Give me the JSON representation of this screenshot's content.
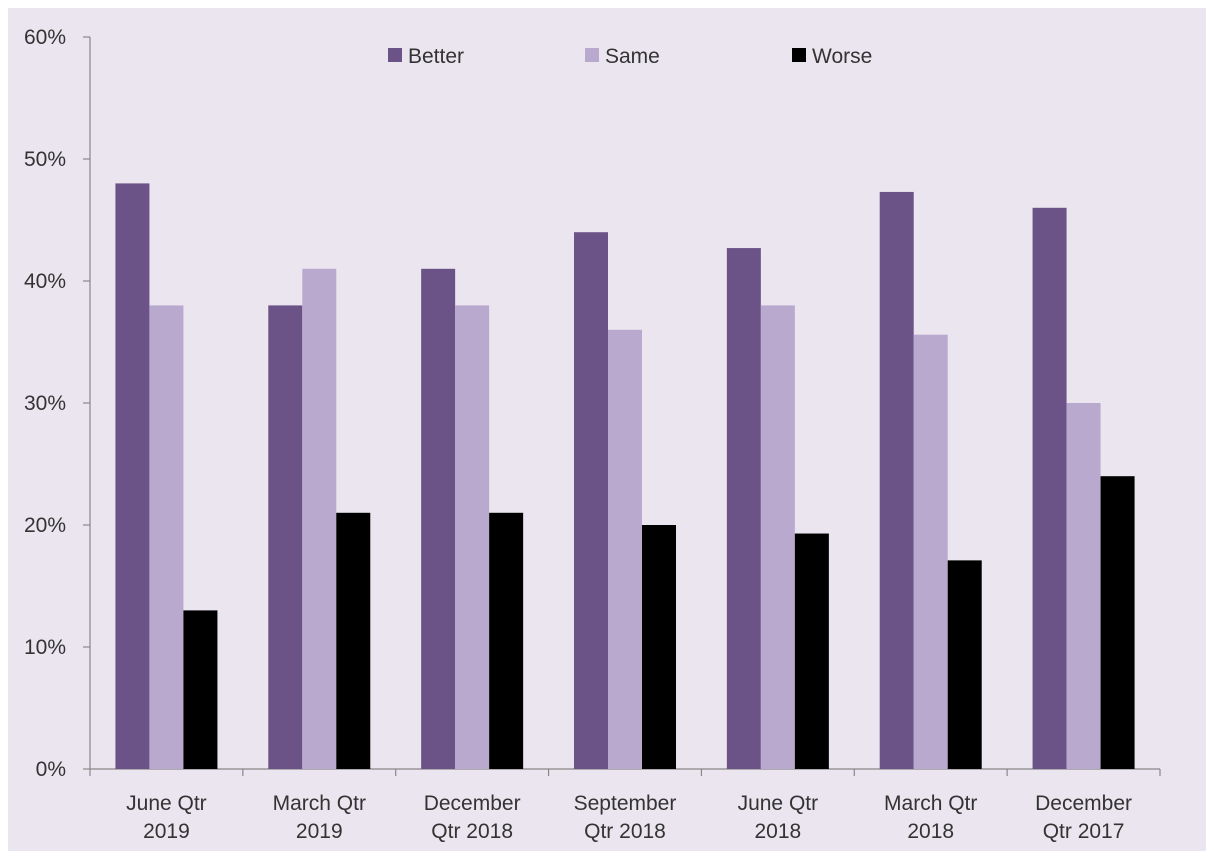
{
  "chart_data": {
    "type": "bar",
    "categories": [
      [
        "June Qtr",
        "2019"
      ],
      [
        "March Qtr",
        "2019"
      ],
      [
        "December",
        "Qtr 2018"
      ],
      [
        "September",
        "Qtr 2018"
      ],
      [
        "June Qtr",
        "2018"
      ],
      [
        "March Qtr",
        "2018"
      ],
      [
        "December",
        "Qtr 2017"
      ]
    ],
    "series": [
      {
        "name": "Better",
        "color": "#6b5388",
        "values": [
          48,
          38,
          41,
          44,
          42.7,
          47.3,
          46
        ]
      },
      {
        "name": "Same",
        "color": "#b9a9cf",
        "values": [
          38,
          41,
          38,
          36,
          38,
          35.6,
          30
        ]
      },
      {
        "name": "Worse",
        "color": "#000000",
        "values": [
          13,
          21,
          21,
          20,
          19.3,
          17.1,
          24
        ]
      }
    ],
    "y_ticks": [
      "0%",
      "10%",
      "20%",
      "30%",
      "40%",
      "50%",
      "60%"
    ],
    "ylim": [
      0,
      60
    ],
    "grid": false,
    "legend_position": "top",
    "background_color": "#ebe5ef",
    "title": "",
    "xlabel": "",
    "ylabel": ""
  }
}
